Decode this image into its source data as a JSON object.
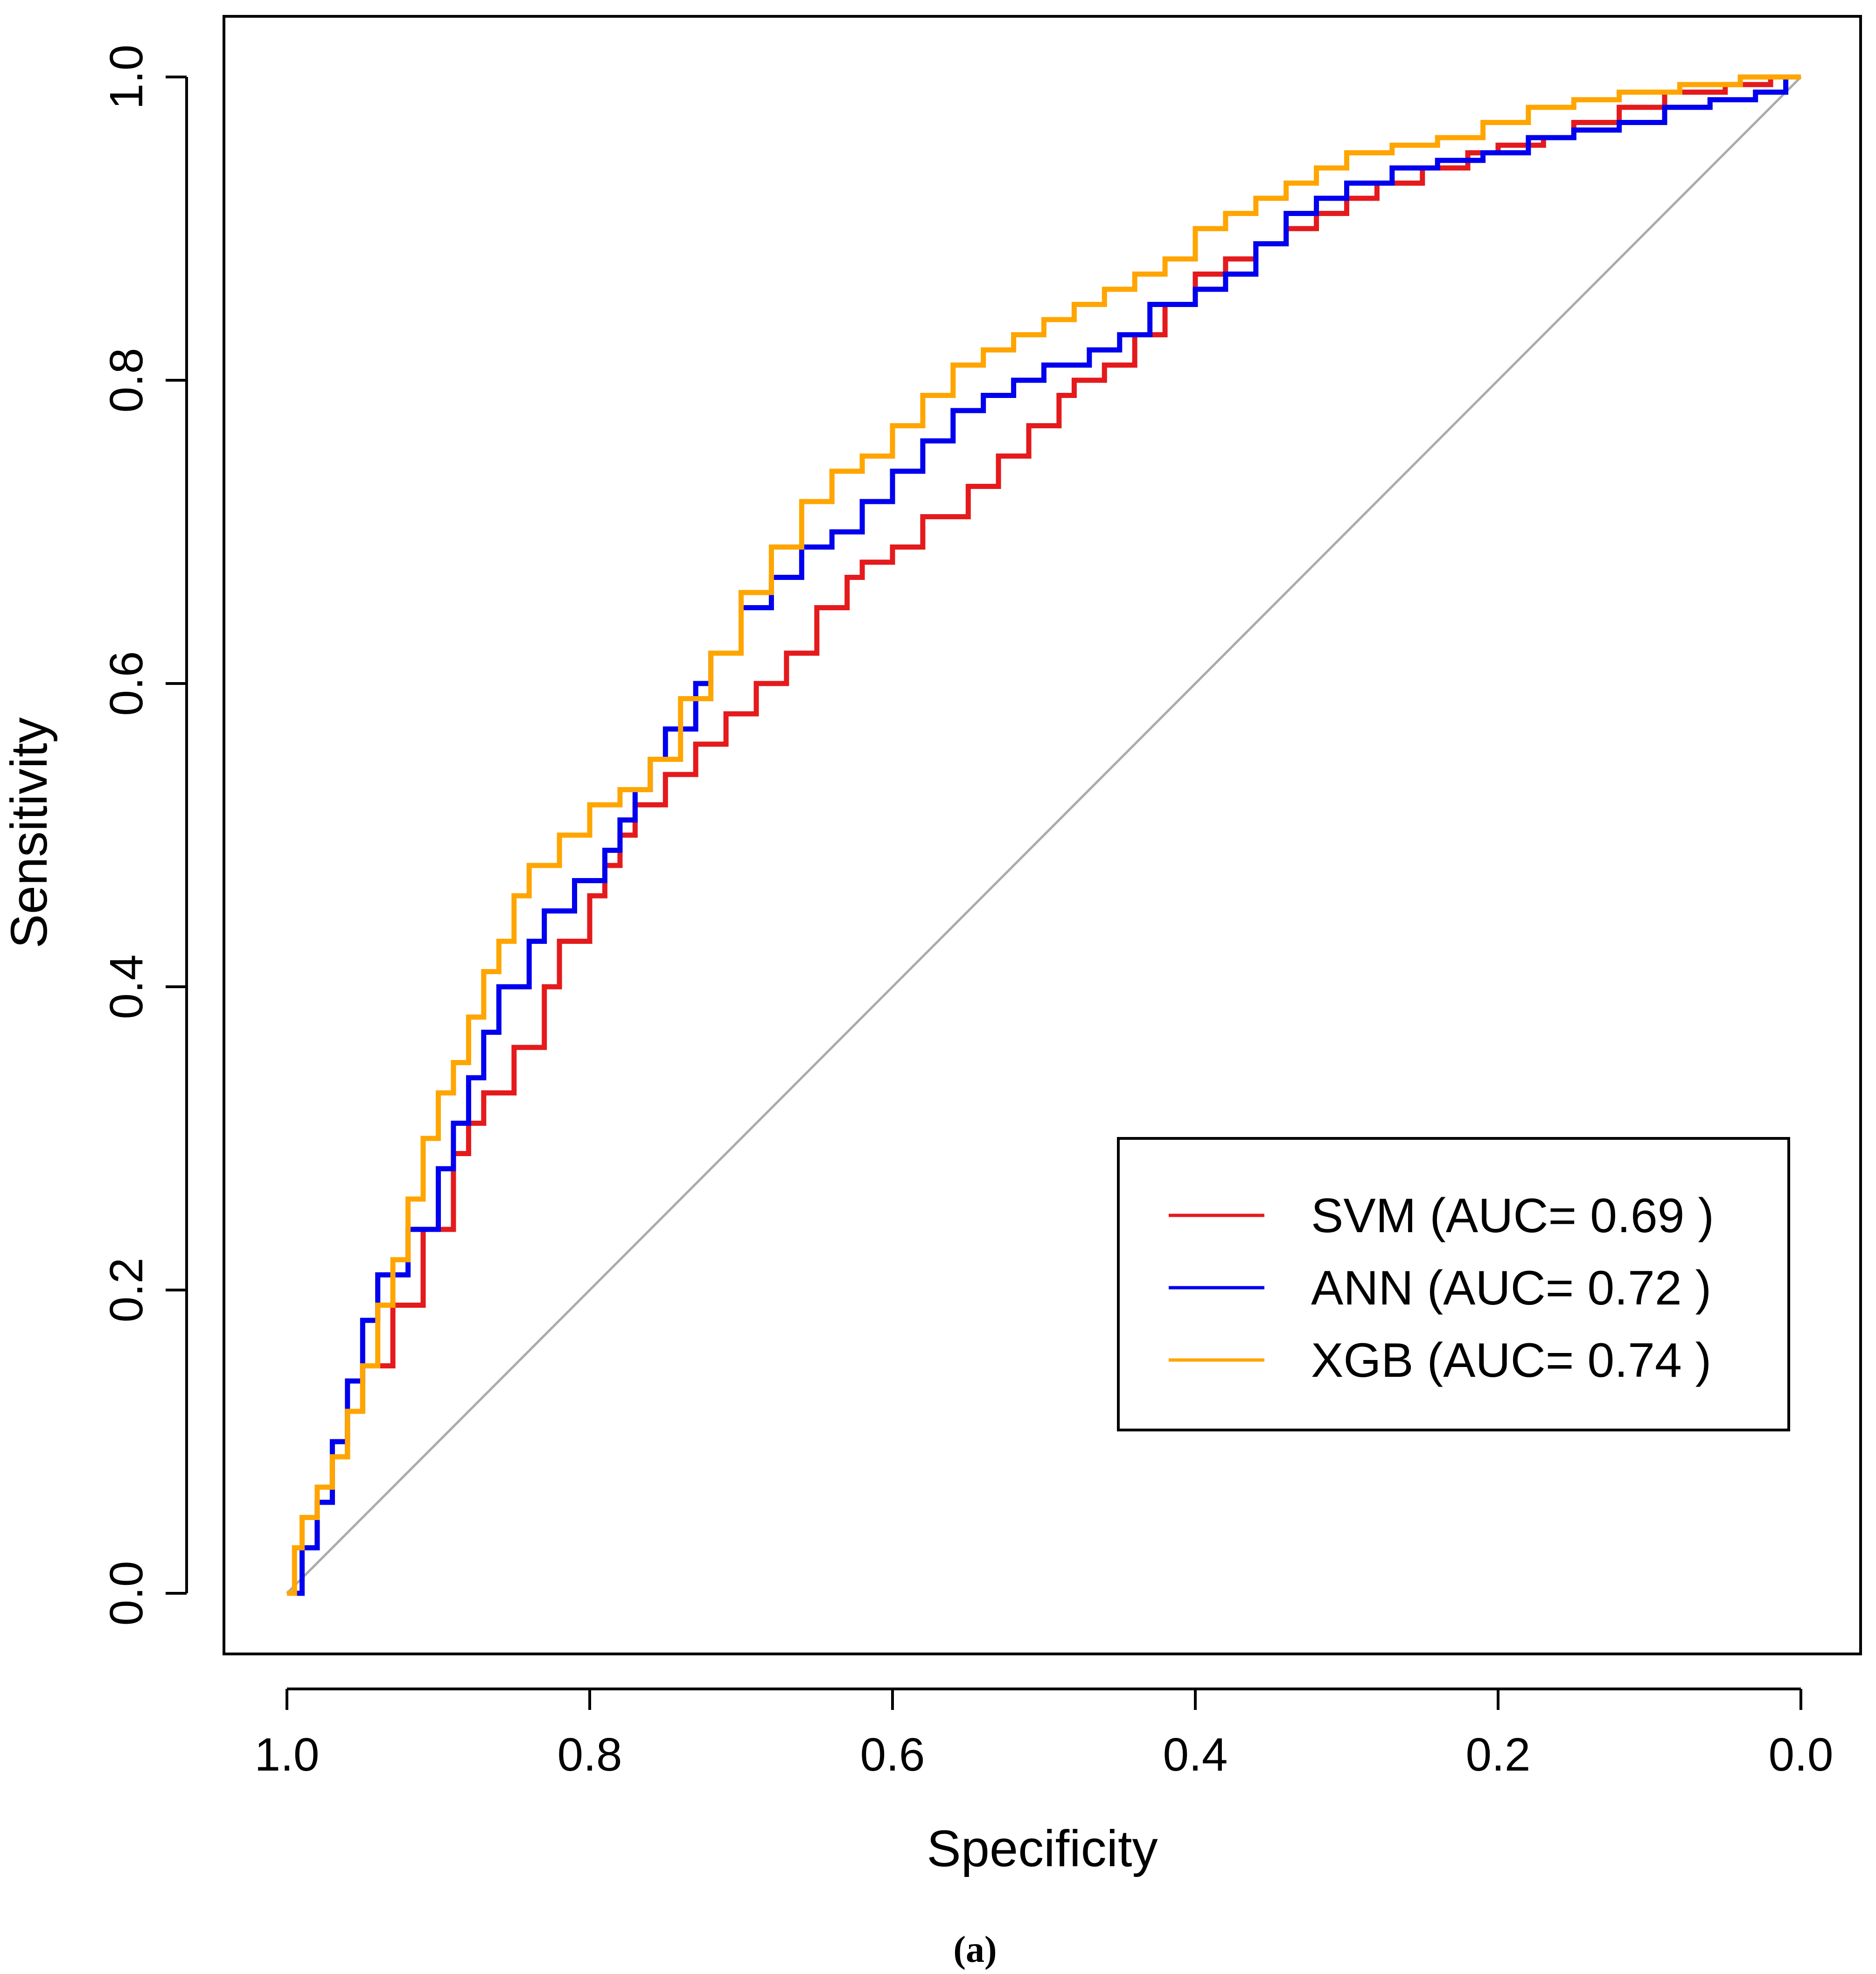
{
  "chart_data": {
    "type": "line",
    "title": "",
    "xlabel": "Specificity",
    "ylabel": "Sensitivity",
    "xlim": [
      1.0,
      0.0
    ],
    "ylim": [
      0.0,
      1.0
    ],
    "x_reversed": true,
    "xticks": [
      1.0,
      0.8,
      0.6,
      0.4,
      0.2,
      0.0
    ],
    "xtick_labels": [
      "1.0",
      "0.8",
      "0.6",
      "0.4",
      "0.2",
      "0.0"
    ],
    "yticks": [
      0.0,
      0.2,
      0.4,
      0.6,
      0.8,
      1.0
    ],
    "ytick_labels": [
      "0.0",
      "0.2",
      "0.4",
      "0.6",
      "0.8",
      "1.0"
    ],
    "grid": false,
    "legend_position": "bottom-right",
    "panel_label": "(a)",
    "reference_line": {
      "from": [
        1.0,
        0.0
      ],
      "to": [
        0.0,
        1.0
      ],
      "color": "#aaaaaa"
    },
    "series": [
      {
        "name": "SVM",
        "legend_label": "SVM (AUC= 0.69 )",
        "auc": 0.69,
        "color": "#e41a1c",
        "specificity": [
          1.0,
          0.99,
          0.98,
          0.97,
          0.96,
          0.95,
          0.93,
          0.91,
          0.89,
          0.88,
          0.87,
          0.85,
          0.83,
          0.82,
          0.8,
          0.79,
          0.78,
          0.77,
          0.75,
          0.73,
          0.71,
          0.69,
          0.67,
          0.65,
          0.63,
          0.62,
          0.6,
          0.58,
          0.55,
          0.53,
          0.51,
          0.49,
          0.48,
          0.46,
          0.44,
          0.42,
          0.4,
          0.38,
          0.36,
          0.34,
          0.32,
          0.3,
          0.28,
          0.25,
          0.22,
          0.2,
          0.17,
          0.15,
          0.12,
          0.09,
          0.07,
          0.05,
          0.02,
          0.0
        ],
        "sensitivity": [
          0.0,
          0.03,
          0.06,
          0.09,
          0.12,
          0.15,
          0.19,
          0.24,
          0.29,
          0.31,
          0.33,
          0.36,
          0.4,
          0.43,
          0.46,
          0.48,
          0.5,
          0.52,
          0.54,
          0.56,
          0.58,
          0.6,
          0.62,
          0.65,
          0.67,
          0.68,
          0.69,
          0.71,
          0.73,
          0.75,
          0.77,
          0.79,
          0.8,
          0.81,
          0.83,
          0.85,
          0.87,
          0.88,
          0.89,
          0.9,
          0.91,
          0.92,
          0.93,
          0.94,
          0.95,
          0.955,
          0.96,
          0.97,
          0.98,
          0.99,
          0.99,
          0.995,
          1.0,
          1.0
        ]
      },
      {
        "name": "ANN",
        "legend_label": "ANN (AUC= 0.72 )",
        "auc": 0.72,
        "color": "#0000ee",
        "specificity": [
          1.0,
          0.99,
          0.98,
          0.97,
          0.96,
          0.95,
          0.94,
          0.92,
          0.9,
          0.89,
          0.88,
          0.87,
          0.86,
          0.84,
          0.83,
          0.81,
          0.79,
          0.78,
          0.77,
          0.76,
          0.75,
          0.73,
          0.72,
          0.7,
          0.68,
          0.66,
          0.64,
          0.62,
          0.6,
          0.58,
          0.56,
          0.54,
          0.52,
          0.5,
          0.47,
          0.45,
          0.43,
          0.4,
          0.38,
          0.36,
          0.34,
          0.32,
          0.3,
          0.27,
          0.24,
          0.21,
          0.18,
          0.15,
          0.12,
          0.09,
          0.06,
          0.03,
          0.01,
          0.0
        ],
        "sensitivity": [
          0.0,
          0.03,
          0.06,
          0.1,
          0.14,
          0.18,
          0.21,
          0.24,
          0.28,
          0.31,
          0.34,
          0.37,
          0.4,
          0.43,
          0.45,
          0.47,
          0.49,
          0.51,
          0.53,
          0.55,
          0.57,
          0.6,
          0.62,
          0.65,
          0.67,
          0.69,
          0.7,
          0.72,
          0.74,
          0.76,
          0.78,
          0.79,
          0.8,
          0.81,
          0.82,
          0.83,
          0.85,
          0.86,
          0.87,
          0.89,
          0.91,
          0.92,
          0.93,
          0.94,
          0.945,
          0.95,
          0.96,
          0.965,
          0.97,
          0.98,
          0.985,
          0.99,
          1.0,
          1.0
        ]
      },
      {
        "name": "XGB",
        "legend_label": "XGB (AUC= 0.74 )",
        "auc": 0.74,
        "color": "#ffa500",
        "specificity": [
          1.0,
          0.995,
          0.99,
          0.98,
          0.97,
          0.96,
          0.95,
          0.94,
          0.93,
          0.92,
          0.91,
          0.9,
          0.89,
          0.88,
          0.87,
          0.86,
          0.85,
          0.84,
          0.82,
          0.8,
          0.78,
          0.76,
          0.74,
          0.72,
          0.7,
          0.68,
          0.66,
          0.64,
          0.62,
          0.6,
          0.58,
          0.56,
          0.54,
          0.52,
          0.5,
          0.48,
          0.46,
          0.44,
          0.42,
          0.4,
          0.38,
          0.36,
          0.34,
          0.32,
          0.3,
          0.27,
          0.24,
          0.21,
          0.18,
          0.15,
          0.12,
          0.08,
          0.04,
          0.0
        ],
        "sensitivity": [
          0.0,
          0.03,
          0.05,
          0.07,
          0.09,
          0.12,
          0.15,
          0.19,
          0.22,
          0.26,
          0.3,
          0.33,
          0.35,
          0.38,
          0.41,
          0.43,
          0.46,
          0.48,
          0.5,
          0.52,
          0.53,
          0.55,
          0.59,
          0.62,
          0.66,
          0.69,
          0.72,
          0.74,
          0.75,
          0.77,
          0.79,
          0.81,
          0.82,
          0.83,
          0.84,
          0.85,
          0.86,
          0.87,
          0.88,
          0.9,
          0.91,
          0.92,
          0.93,
          0.94,
          0.95,
          0.955,
          0.96,
          0.97,
          0.98,
          0.985,
          0.99,
          0.995,
          1.0,
          1.0
        ]
      }
    ]
  }
}
